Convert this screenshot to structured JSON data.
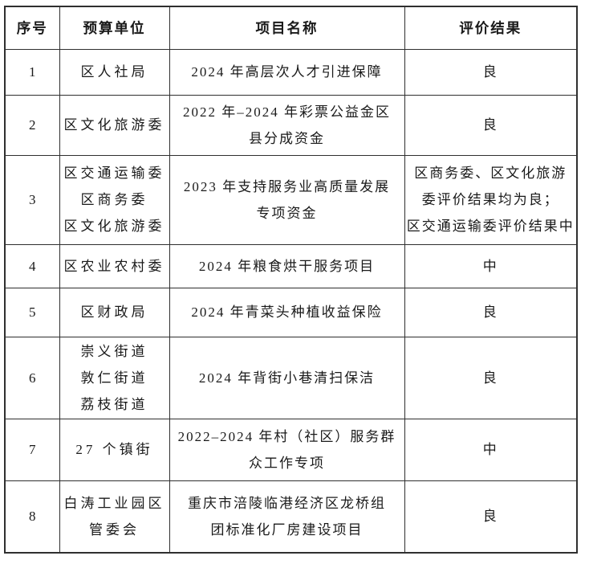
{
  "colors": {
    "border": "#2f2f2f",
    "text": "#1a1a1a",
    "background": "#ffffff"
  },
  "table": {
    "headers": [
      "序号",
      "预算单位",
      "项目名称",
      "评价结果"
    ],
    "rows": [
      {
        "no": "1",
        "unit": "区人社局",
        "project": "2024 年高层次人才引进保障",
        "result": "良"
      },
      {
        "no": "2",
        "unit": "区文化旅游委",
        "project": "2022 年–2024 年彩票公益金区\n县分成资金",
        "result": "良"
      },
      {
        "no": "3",
        "unit": "区交通运输委\n区商务委\n区文化旅游委",
        "project": "2023 年支持服务业高质量发展\n专项资金",
        "result": "区商务委、区文化旅游\n委评价结果均为良；\n区交通运输委评价结果中"
      },
      {
        "no": "4",
        "unit": "区农业农村委",
        "project": "2024 年粮食烘干服务项目",
        "result": "中"
      },
      {
        "no": "5",
        "unit": "区财政局",
        "project": "2024 年青菜头种植收益保险",
        "result": "良"
      },
      {
        "no": "6",
        "unit": "崇义街道\n敦仁街道\n荔枝街道",
        "project": "2024 年背街小巷清扫保洁",
        "result": "良"
      },
      {
        "no": "7",
        "unit": "27 个镇街",
        "project": "2022–2024 年村（社区）服务群\n众工作专项",
        "result": "中"
      },
      {
        "no": "8",
        "unit": "白涛工业园区\n管委会",
        "project": "重庆市涪陵临港经济区龙桥组\n团标准化厂房建设项目",
        "result": "良"
      }
    ]
  }
}
